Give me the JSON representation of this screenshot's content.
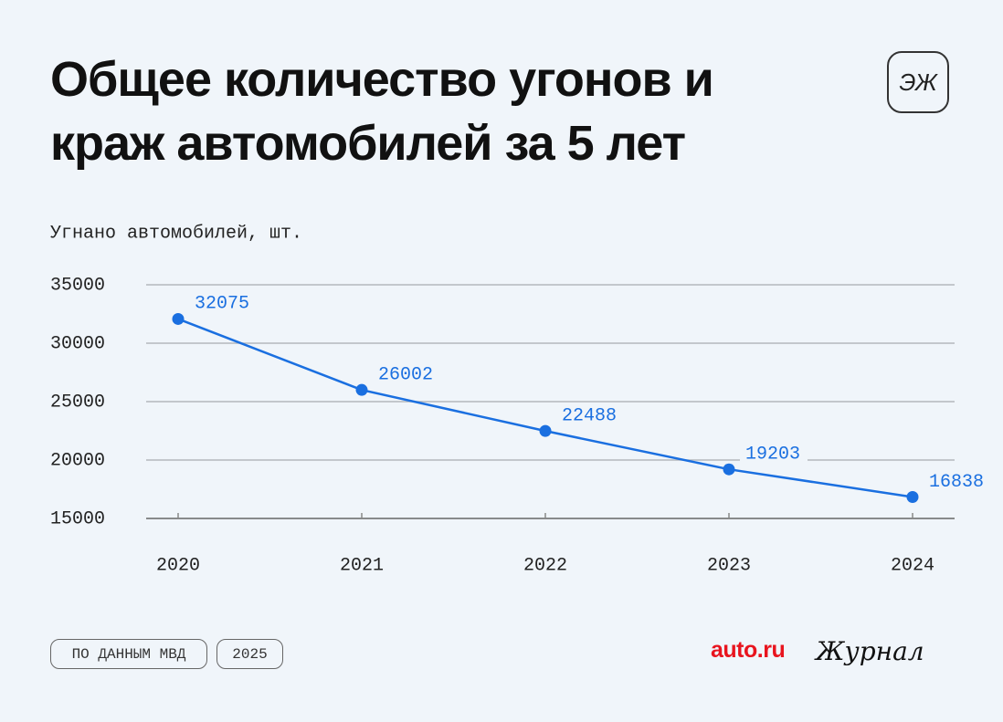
{
  "chart_data": {
    "type": "line",
    "title": "Общее количество угонов и краж автомобилей за 5 лет",
    "y_label": "Угнано автомобилей, шт.",
    "categories": [
      "2020",
      "2021",
      "2022",
      "2023",
      "2024"
    ],
    "series": [
      {
        "name": "Угнано автомобилей",
        "color": "#1a6fe0",
        "values": [
          32075,
          26002,
          22488,
          19203,
          16838
        ]
      }
    ],
    "ylim": [
      15000,
      35000
    ],
    "yticks": [
      15000,
      20000,
      25000,
      30000,
      35000
    ],
    "grid": true
  },
  "footer": {
    "source": "ПО ДАННЫМ МВД",
    "year": "2025",
    "brand": "auto.ru",
    "journal": "Журнал"
  },
  "logo": "ЭЖ"
}
